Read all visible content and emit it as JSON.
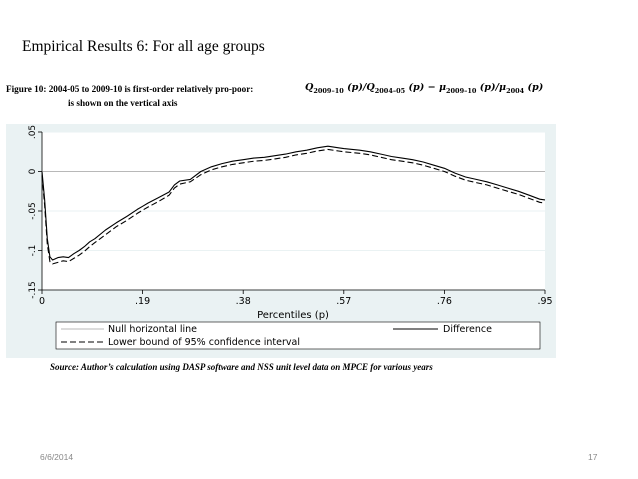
{
  "slide": {
    "title": "Empirical Results 6: For all age groups",
    "caption_line1": "Figure 10: 2004-05 to 2009-10 is first-order relatively pro-poor:",
    "caption_line2": "is shown on the vertical axis",
    "formula": {
      "q1": "Q",
      "q1_sub": "2009–10",
      "p1": " (p)/",
      "q2": "Q",
      "q2_sub": "2004–05",
      "p2": " (p) − μ",
      "m1_sub": "2009–10",
      "p3": " (p)/μ",
      "m2_sub": "2004",
      "p4": " (p)"
    },
    "source": "Source: Author’s calculation using DASP software and NSS unit level data on MPCE for various years",
    "footer_date": "6/6/2014",
    "footer_page": "17"
  },
  "chart_data": {
    "type": "line",
    "xlabel": "Percentiles (p)",
    "ylabel": "",
    "xlim": [
      0,
      0.95
    ],
    "ylim": [
      -0.15,
      0.05
    ],
    "xticks": [
      0,
      0.19,
      0.38,
      0.57,
      0.76,
      0.95
    ],
    "xtick_labels": [
      "0",
      ".19",
      ".38",
      ".57",
      ".76",
      ".95"
    ],
    "yticks": [
      -0.15,
      -0.1,
      -0.05,
      0,
      0.05
    ],
    "ytick_labels": [
      "-.15",
      "-.1",
      "-.05",
      "0",
      ".05"
    ],
    "grid": "horizontal",
    "legend_position": "bottom",
    "series": [
      {
        "name": "Null horizontal line",
        "style": "thin-solid",
        "color": "#a0a0a0",
        "x": [
          0,
          0.95
        ],
        "y": [
          0,
          0
        ]
      },
      {
        "name": "Difference",
        "style": "solid",
        "color": "#000000",
        "x": [
          0,
          0.005,
          0.01,
          0.015,
          0.02,
          0.03,
          0.04,
          0.05,
          0.06,
          0.07,
          0.08,
          0.09,
          0.1,
          0.12,
          0.14,
          0.16,
          0.18,
          0.19,
          0.2,
          0.22,
          0.24,
          0.25,
          0.26,
          0.28,
          0.3,
          0.32,
          0.34,
          0.36,
          0.38,
          0.4,
          0.42,
          0.44,
          0.46,
          0.48,
          0.5,
          0.52,
          0.54,
          0.56,
          0.57,
          0.6,
          0.62,
          0.64,
          0.66,
          0.68,
          0.7,
          0.72,
          0.74,
          0.76,
          0.78,
          0.8,
          0.82,
          0.84,
          0.86,
          0.88,
          0.9,
          0.92,
          0.94,
          0.95
        ],
        "y": [
          0,
          -0.035,
          -0.085,
          -0.108,
          -0.112,
          -0.109,
          -0.108,
          -0.109,
          -0.104,
          -0.1,
          -0.095,
          -0.089,
          -0.085,
          -0.074,
          -0.065,
          -0.057,
          -0.048,
          -0.044,
          -0.04,
          -0.033,
          -0.026,
          -0.017,
          -0.012,
          -0.01,
          0.0,
          0.006,
          0.01,
          0.013,
          0.015,
          0.017,
          0.018,
          0.02,
          0.022,
          0.025,
          0.027,
          0.03,
          0.032,
          0.03,
          0.029,
          0.027,
          0.025,
          0.022,
          0.019,
          0.017,
          0.015,
          0.012,
          0.008,
          0.004,
          -0.002,
          -0.007,
          -0.01,
          -0.013,
          -0.017,
          -0.021,
          -0.025,
          -0.03,
          -0.035,
          -0.036
        ]
      },
      {
        "name": "Lower bound of 95% confidence interval",
        "style": "dashed",
        "color": "#000000",
        "x": [
          0,
          0.005,
          0.01,
          0.015,
          0.02,
          0.03,
          0.04,
          0.05,
          0.06,
          0.07,
          0.08,
          0.09,
          0.1,
          0.12,
          0.14,
          0.16,
          0.18,
          0.19,
          0.2,
          0.22,
          0.24,
          0.25,
          0.26,
          0.28,
          0.3,
          0.32,
          0.34,
          0.36,
          0.38,
          0.4,
          0.42,
          0.44,
          0.46,
          0.48,
          0.5,
          0.52,
          0.54,
          0.56,
          0.57,
          0.6,
          0.62,
          0.64,
          0.66,
          0.68,
          0.7,
          0.72,
          0.74,
          0.76,
          0.78,
          0.8,
          0.82,
          0.84,
          0.86,
          0.88,
          0.9,
          0.92,
          0.94,
          0.95
        ],
        "y": [
          -0.005,
          -0.042,
          -0.092,
          -0.114,
          -0.117,
          -0.115,
          -0.113,
          -0.114,
          -0.11,
          -0.106,
          -0.101,
          -0.095,
          -0.09,
          -0.08,
          -0.07,
          -0.062,
          -0.053,
          -0.049,
          -0.045,
          -0.038,
          -0.03,
          -0.021,
          -0.016,
          -0.013,
          -0.004,
          0.002,
          0.006,
          0.009,
          0.011,
          0.013,
          0.014,
          0.016,
          0.018,
          0.021,
          0.023,
          0.026,
          0.028,
          0.026,
          0.025,
          0.023,
          0.021,
          0.018,
          0.015,
          0.013,
          0.011,
          0.008,
          0.004,
          0.0,
          -0.006,
          -0.011,
          -0.014,
          -0.017,
          -0.021,
          -0.025,
          -0.029,
          -0.034,
          -0.039,
          -0.04
        ]
      }
    ]
  }
}
